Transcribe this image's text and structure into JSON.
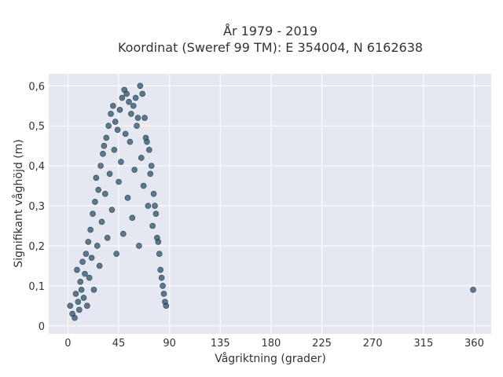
{
  "chart_data": {
    "type": "scatter",
    "title_line1": "År 1979 - 2019",
    "title_line2": "Koordinat (Sweref 99 TM): E 354004, N 6162638",
    "xlabel": "Vågriktning (grader)",
    "ylabel": "Signifikant våghöjd (m)",
    "xlim": [
      -17,
      375
    ],
    "ylim": [
      -0.02,
      0.63
    ],
    "x_ticks": [
      0,
      45,
      90,
      135,
      180,
      225,
      270,
      315,
      360
    ],
    "x_tick_labels": [
      "0",
      "45",
      "90",
      "135",
      "180",
      "225",
      "270",
      "315",
      "360"
    ],
    "y_ticks": [
      0,
      0.1,
      0.2,
      0.3,
      0.4,
      0.5,
      0.6
    ],
    "y_tick_labels": [
      "0",
      "0,1",
      "0,2",
      "0,3",
      "0,4",
      "0,5",
      "0,6"
    ],
    "grid": true,
    "colors": {
      "background": "#e5e8f0",
      "marker": "#2f5068",
      "grid": "#ffffff"
    },
    "series": [
      {
        "points": [
          [
            2,
            0.05
          ],
          [
            4,
            0.03
          ],
          [
            6,
            0.02
          ],
          [
            7,
            0.08
          ],
          [
            8,
            0.14
          ],
          [
            9,
            0.06
          ],
          [
            10,
            0.04
          ],
          [
            11,
            0.11
          ],
          [
            12,
            0.09
          ],
          [
            13,
            0.16
          ],
          [
            14,
            0.07
          ],
          [
            15,
            0.13
          ],
          [
            16,
            0.18
          ],
          [
            17,
            0.05
          ],
          [
            18,
            0.21
          ],
          [
            19,
            0.12
          ],
          [
            20,
            0.24
          ],
          [
            21,
            0.17
          ],
          [
            22,
            0.28
          ],
          [
            23,
            0.09
          ],
          [
            24,
            0.31
          ],
          [
            25,
            0.37
          ],
          [
            26,
            0.2
          ],
          [
            27,
            0.34
          ],
          [
            28,
            0.15
          ],
          [
            29,
            0.4
          ],
          [
            30,
            0.26
          ],
          [
            31,
            0.43
          ],
          [
            32,
            0.45
          ],
          [
            33,
            0.33
          ],
          [
            34,
            0.47
          ],
          [
            35,
            0.22
          ],
          [
            36,
            0.5
          ],
          [
            37,
            0.38
          ],
          [
            38,
            0.53
          ],
          [
            39,
            0.29
          ],
          [
            40,
            0.55
          ],
          [
            41,
            0.44
          ],
          [
            42,
            0.51
          ],
          [
            43,
            0.18
          ],
          [
            44,
            0.49
          ],
          [
            45,
            0.36
          ],
          [
            46,
            0.54
          ],
          [
            47,
            0.41
          ],
          [
            48,
            0.57
          ],
          [
            49,
            0.23
          ],
          [
            50,
            0.59
          ],
          [
            51,
            0.48
          ],
          [
            52,
            0.58
          ],
          [
            53,
            0.32
          ],
          [
            54,
            0.56
          ],
          [
            55,
            0.46
          ],
          [
            56,
            0.53
          ],
          [
            57,
            0.27
          ],
          [
            58,
            0.55
          ],
          [
            59,
            0.39
          ],
          [
            60,
            0.57
          ],
          [
            61,
            0.5
          ],
          [
            62,
            0.52
          ],
          [
            63,
            0.2
          ],
          [
            64,
            0.6
          ],
          [
            65,
            0.42
          ],
          [
            66,
            0.58
          ],
          [
            67,
            0.35
          ],
          [
            68,
            0.52
          ],
          [
            69,
            0.47
          ],
          [
            70,
            0.46
          ],
          [
            71,
            0.3
          ],
          [
            72,
            0.44
          ],
          [
            73,
            0.38
          ],
          [
            74,
            0.4
          ],
          [
            75,
            0.25
          ],
          [
            76,
            0.33
          ],
          [
            77,
            0.3
          ],
          [
            78,
            0.28
          ],
          [
            79,
            0.22
          ],
          [
            80,
            0.21
          ],
          [
            81,
            0.18
          ],
          [
            82,
            0.14
          ],
          [
            83,
            0.12
          ],
          [
            84,
            0.1
          ],
          [
            85,
            0.08
          ],
          [
            86,
            0.06
          ],
          [
            87,
            0.05
          ],
          [
            359,
            0.09
          ]
        ]
      }
    ]
  }
}
